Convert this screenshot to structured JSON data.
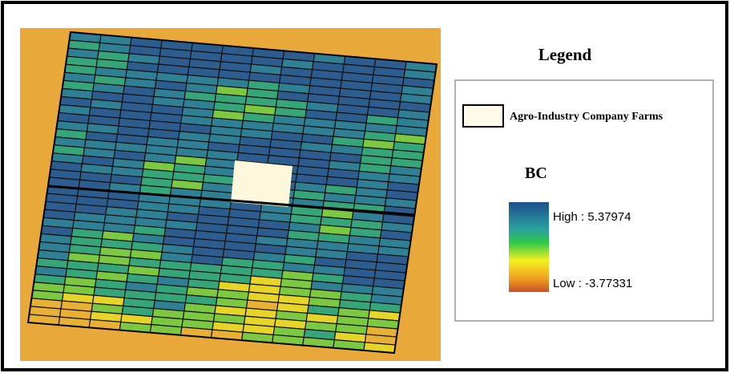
{
  "legend": {
    "title": "Legend",
    "farms_label": "Agro-Industry Company Farms",
    "layer_name": "BC",
    "high_label": "High : 5.37974",
    "low_label": "Low : -3.77331"
  }
}
